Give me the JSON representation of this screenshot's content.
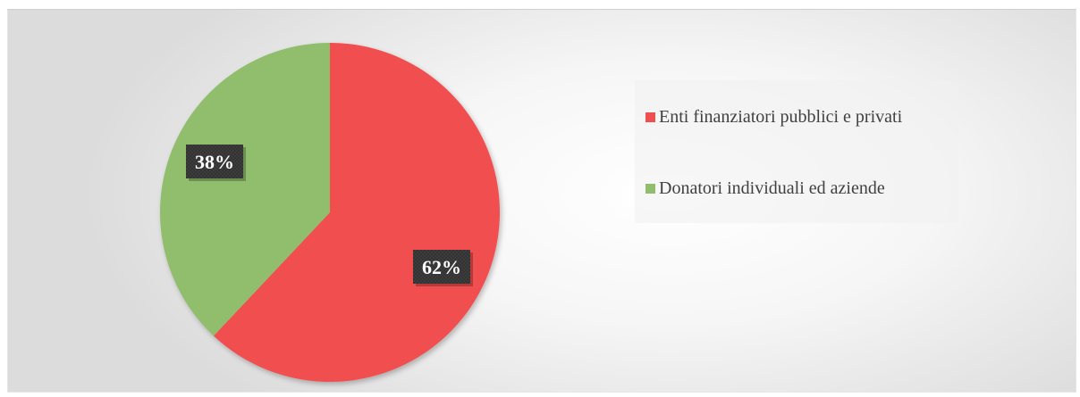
{
  "chart_data": {
    "type": "pie",
    "title": "",
    "slices": [
      {
        "label": "Enti finanziatori pubblici e privati",
        "value": 62,
        "display": "62%",
        "color": "#f14f4f"
      },
      {
        "label": "Donatori individuali ed aziende",
        "value": 38,
        "display": "38%",
        "color": "#90be6d"
      }
    ],
    "legend": "right",
    "data_label_style": "dark-box-white-text"
  }
}
